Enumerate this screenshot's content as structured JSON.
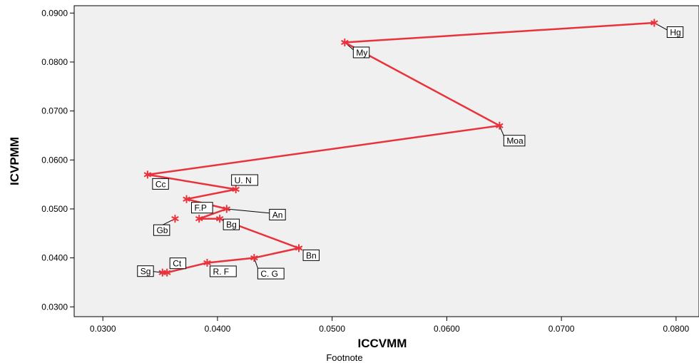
{
  "chart_data": {
    "type": "line",
    "title": "",
    "xlabel": "ICCVMM",
    "ylabel": "ICVPMM",
    "footnote": "Footnote",
    "xlim": [
      0.0275,
      0.082
    ],
    "ylim": [
      0.028,
      0.0915
    ],
    "xticks": [
      "0.0300",
      "0.0400",
      "0.0500",
      "0.0600",
      "0.0700",
      "0.0800"
    ],
    "yticks": [
      "0.0300",
      "0.0400",
      "0.0500",
      "0.0600",
      "0.0700",
      "0.0800",
      "0.0900"
    ],
    "grid": false,
    "line_color": "#e8323c",
    "plot_bg": "#f0f0f0",
    "points": [
      {
        "label": "Hg",
        "x": 0.0781,
        "y": 0.088
      },
      {
        "label": "My",
        "x": 0.0511,
        "y": 0.084
      },
      {
        "label": "Moa",
        "x": 0.0646,
        "y": 0.067
      },
      {
        "label": "Cc",
        "x": 0.0339,
        "y": 0.057
      },
      {
        "label": "U. N",
        "x": 0.0416,
        "y": 0.054
      },
      {
        "label": "F.P",
        "x": 0.0373,
        "y": 0.052
      },
      {
        "label": "An",
        "x": 0.0408,
        "y": 0.05
      },
      {
        "label": "",
        "x": 0.0384,
        "y": 0.048
      },
      {
        "label": "Bg",
        "x": 0.0402,
        "y": 0.048
      },
      {
        "label": "Bn",
        "x": 0.0471,
        "y": 0.042
      },
      {
        "label": "C. G",
        "x": 0.0432,
        "y": 0.04
      },
      {
        "label": "R. F",
        "x": 0.0391,
        "y": 0.039
      },
      {
        "label": "Ct",
        "x": 0.0356,
        "y": 0.037
      },
      {
        "label": "Sg",
        "x": 0.0352,
        "y": 0.037
      }
    ],
    "isolated_points": [
      {
        "label": "Gb",
        "x": 0.0363,
        "y": 0.048
      }
    ]
  }
}
